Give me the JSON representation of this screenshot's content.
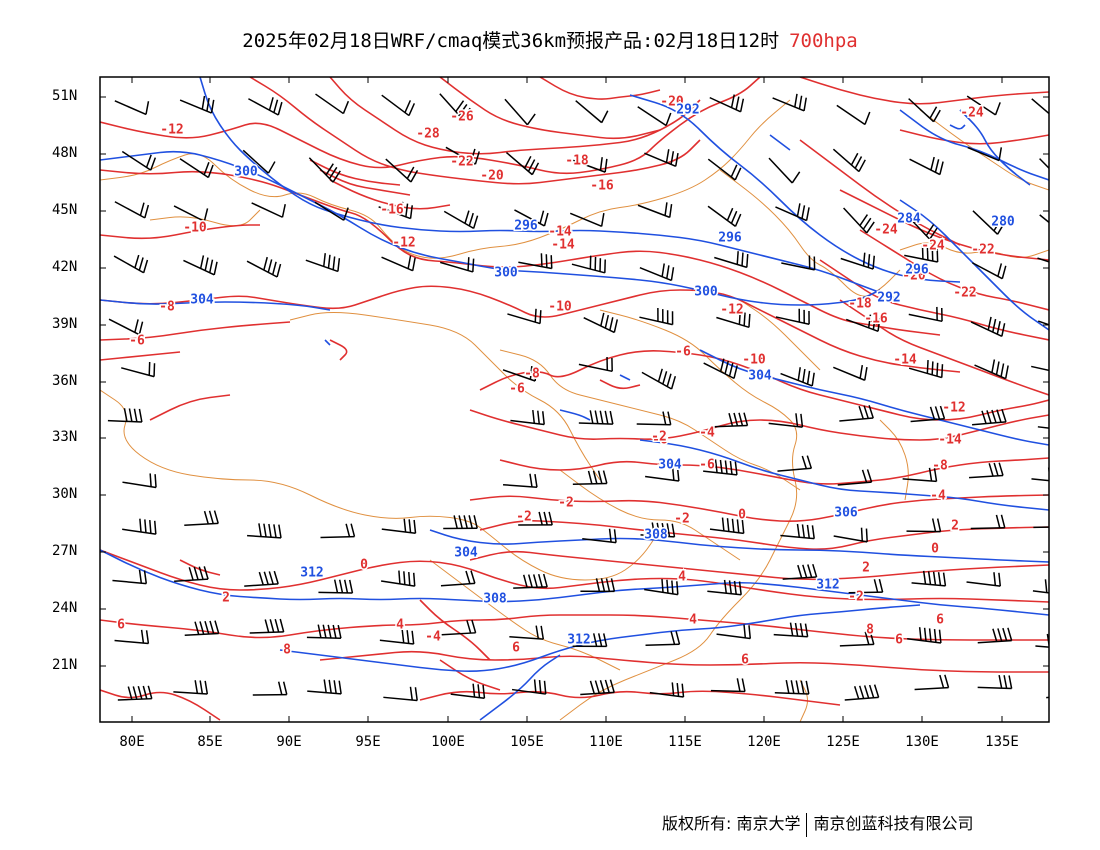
{
  "title": {
    "main": "2025年02月18日WRF/cmaq模式36km预报产品:02月18日12时",
    "level": "700hpa"
  },
  "colors": {
    "height": "#2050e0",
    "temperature": "#e03030",
    "border": "#e09040",
    "wind": "#000000"
  },
  "axes": {
    "lat_labels": [
      "51N",
      "48N",
      "45N",
      "42N",
      "39N",
      "36N",
      "33N",
      "30N",
      "27N",
      "24N",
      "21N"
    ],
    "lon_labels": [
      "80E",
      "85E",
      "90E",
      "95E",
      "100E",
      "105E",
      "110E",
      "115E",
      "120E",
      "125E",
      "130E",
      "135E"
    ]
  },
  "contour_labels": {
    "temperature": [
      "-12",
      "-20",
      "-24",
      "-26",
      "-28",
      "-22",
      "-20",
      "-18",
      "-16",
      "-14",
      "-16",
      "-12",
      "-10",
      "-10",
      "-12",
      "-14",
      "-24",
      "-24",
      "-22",
      "-22",
      "-20",
      "-18",
      "-16",
      "-14",
      "-8",
      "-6",
      "-6",
      "-8",
      "-6",
      "-10",
      "-12",
      "-14",
      "-8",
      "-6",
      "-4",
      "-6",
      "-2",
      "-4",
      "-2",
      "-2",
      "0",
      "2",
      "0",
      "-2",
      "0",
      "2",
      "4",
      "4",
      "2",
      "-2",
      "-4",
      "6",
      "6",
      "4",
      "6",
      "8",
      "6",
      "8",
      "6"
    ],
    "height": [
      "292",
      "300",
      "304",
      "296",
      "300",
      "300",
      "296",
      "284",
      "280",
      "292",
      "296",
      "304",
      "304",
      "306",
      "304",
      "312",
      "308",
      "308",
      "312",
      "312"
    ]
  },
  "footer": {
    "left": "版权所有: 南京大学",
    "right": "南京创蓝科技有限公司"
  }
}
